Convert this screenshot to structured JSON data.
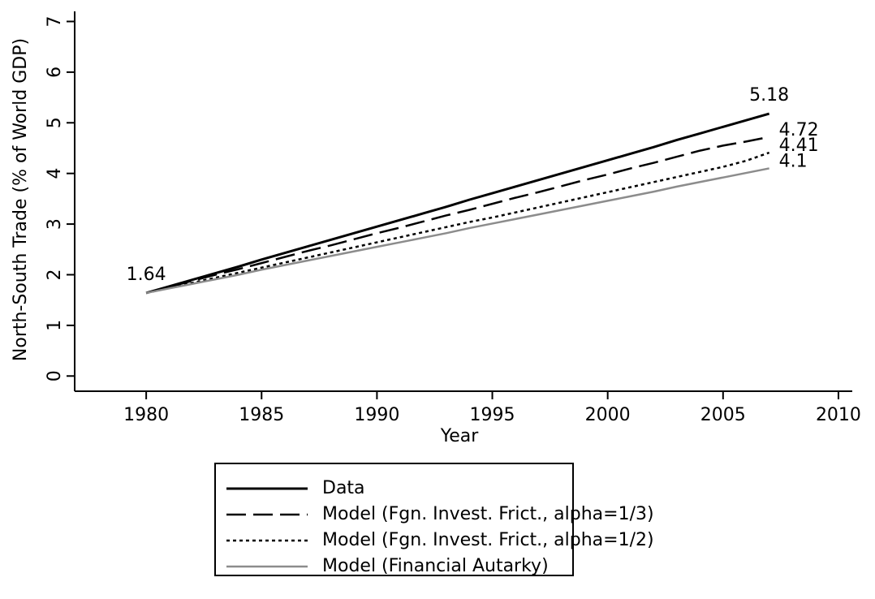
{
  "chart_data": {
    "type": "line",
    "xlabel": "Year",
    "ylabel": "North-South Trade (% of World GDP)",
    "x": [
      1980,
      1981,
      1982,
      1983,
      1984,
      1985,
      1986,
      1987,
      1988,
      1989,
      1990,
      1991,
      1992,
      1993,
      1994,
      1995,
      1996,
      1997,
      1998,
      1999,
      2000,
      2001,
      2002,
      2003,
      2004,
      2005,
      2006,
      2007
    ],
    "xlim": [
      1976.9,
      2010.6
    ],
    "xticks": [
      1980,
      1985,
      1990,
      1995,
      2000,
      2005,
      2010
    ],
    "ylim": [
      -0.3,
      7.2
    ],
    "yticks": [
      0,
      1,
      2,
      3,
      4,
      5,
      6,
      7
    ],
    "legend": "bottom",
    "series": [
      {
        "name": "Data",
        "color": "#000000",
        "dash": "solid",
        "values": [
          1.64,
          1.77,
          1.9,
          2.03,
          2.16,
          2.3,
          2.43,
          2.56,
          2.69,
          2.82,
          2.95,
          3.08,
          3.21,
          3.34,
          3.48,
          3.61,
          3.74,
          3.87,
          4.0,
          4.13,
          4.26,
          4.39,
          4.52,
          4.66,
          4.79,
          4.92,
          5.05,
          5.18
        ],
        "value_labels": [
          "1.64",
          null,
          null,
          null,
          null,
          null,
          null,
          null,
          null,
          null,
          null,
          null,
          null,
          null,
          null,
          null,
          null,
          null,
          null,
          null,
          null,
          null,
          null,
          null,
          null,
          null,
          null,
          "5.18"
        ]
      },
      {
        "name": "Model (Fgn. Invest. Frict., alpha=1/3)",
        "color": "#000000",
        "dash": "long-dash",
        "values": [
          1.64,
          1.76,
          1.88,
          2.0,
          2.11,
          2.23,
          2.35,
          2.47,
          2.58,
          2.7,
          2.82,
          2.93,
          3.05,
          3.17,
          3.28,
          3.4,
          3.52,
          3.63,
          3.75,
          3.87,
          3.98,
          4.1,
          4.21,
          4.33,
          4.45,
          4.55,
          4.63,
          4.72
        ],
        "value_labels": [
          null,
          null,
          null,
          null,
          null,
          null,
          null,
          null,
          null,
          null,
          null,
          null,
          null,
          null,
          null,
          null,
          null,
          null,
          null,
          null,
          null,
          null,
          null,
          null,
          null,
          null,
          null,
          "4.72"
        ]
      },
      {
        "name": "Model (Fgn. Invest. Frict., alpha=1/2)",
        "color": "#000000",
        "dash": "dot",
        "values": [
          1.64,
          1.74,
          1.84,
          1.94,
          2.04,
          2.14,
          2.24,
          2.34,
          2.44,
          2.54,
          2.64,
          2.74,
          2.84,
          2.94,
          3.04,
          3.13,
          3.23,
          3.33,
          3.43,
          3.53,
          3.63,
          3.73,
          3.83,
          3.93,
          4.03,
          4.13,
          4.25,
          4.41
        ],
        "value_labels": [
          null,
          null,
          null,
          null,
          null,
          null,
          null,
          null,
          null,
          null,
          null,
          null,
          null,
          null,
          null,
          null,
          null,
          null,
          null,
          null,
          null,
          null,
          null,
          null,
          null,
          null,
          null,
          "4.41"
        ]
      },
      {
        "name": "Model (Financial Autarky)",
        "color": "#8c8c8c",
        "dash": "solid",
        "values": [
          1.64,
          1.73,
          1.82,
          1.91,
          2.0,
          2.1,
          2.19,
          2.28,
          2.37,
          2.46,
          2.55,
          2.64,
          2.73,
          2.82,
          2.92,
          3.01,
          3.1,
          3.19,
          3.28,
          3.37,
          3.46,
          3.55,
          3.64,
          3.74,
          3.83,
          3.92,
          4.01,
          4.1
        ],
        "value_labels": [
          null,
          null,
          null,
          null,
          null,
          null,
          null,
          null,
          null,
          null,
          null,
          null,
          null,
          null,
          null,
          null,
          null,
          null,
          null,
          null,
          null,
          null,
          null,
          null,
          null,
          null,
          null,
          "4.1"
        ]
      }
    ]
  }
}
